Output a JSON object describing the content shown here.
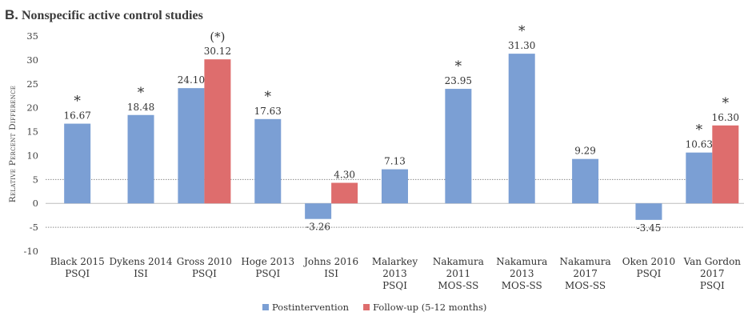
{
  "panel_letter": "B.",
  "chart_data": {
    "type": "bar",
    "title": "Nonspecific active control studies",
    "ylabel": "Relative Percent Difference",
    "xlabel": "",
    "ylim": [
      -10,
      35
    ],
    "yticks": [
      35,
      30,
      25,
      20,
      15,
      10,
      5,
      0,
      -5,
      -10
    ],
    "reference_lines": [
      5,
      -5
    ],
    "grid": false,
    "legend_position": "bottom-center",
    "categories": [
      [
        "Black 2015",
        "PSQI"
      ],
      [
        "Dykens 2014",
        "ISI"
      ],
      [
        "Gross 2010",
        "PSQI"
      ],
      [
        "Hoge 2013",
        "PSQI"
      ],
      [
        "Johns 2016",
        "ISI"
      ],
      [
        "Malarkey",
        "2013",
        "PSQI"
      ],
      [
        "Nakamura",
        "2011",
        "MOS-SS"
      ],
      [
        "Nakamura",
        "2013",
        "MOS-SS"
      ],
      [
        "Nakamura",
        "2017",
        "MOS-SS"
      ],
      [
        "Oken 2010",
        "PSQI"
      ],
      [
        "Van Gordon",
        "2017",
        "PSQI"
      ]
    ],
    "series": [
      {
        "name": "Postintervention",
        "color": "#7b9fd4",
        "values": [
          16.67,
          18.48,
          24.1,
          17.63,
          -3.26,
          7.13,
          23.95,
          31.3,
          9.29,
          -3.45,
          10.63
        ],
        "labels": [
          "16.67",
          "18.48",
          "24.10",
          "17.63",
          "-3.26",
          "7.13",
          "23.95",
          "31.30",
          "9.29",
          "-3.45",
          "10.63"
        ],
        "markers": [
          "*",
          "*",
          "",
          "*",
          "",
          "",
          "*",
          "*",
          "",
          "",
          "*"
        ]
      },
      {
        "name": "Follow-up (5-12 months)",
        "color": "#de6d6d",
        "values": [
          null,
          null,
          30.12,
          null,
          4.3,
          null,
          null,
          null,
          null,
          null,
          16.3
        ],
        "labels": [
          "",
          "",
          "30.12",
          "",
          "4.30",
          "",
          "",
          "",
          "",
          "",
          "16.30"
        ],
        "markers": [
          "",
          "",
          "(*)",
          "",
          "",
          "",
          "",
          "",
          "",
          "",
          "*"
        ]
      }
    ]
  }
}
